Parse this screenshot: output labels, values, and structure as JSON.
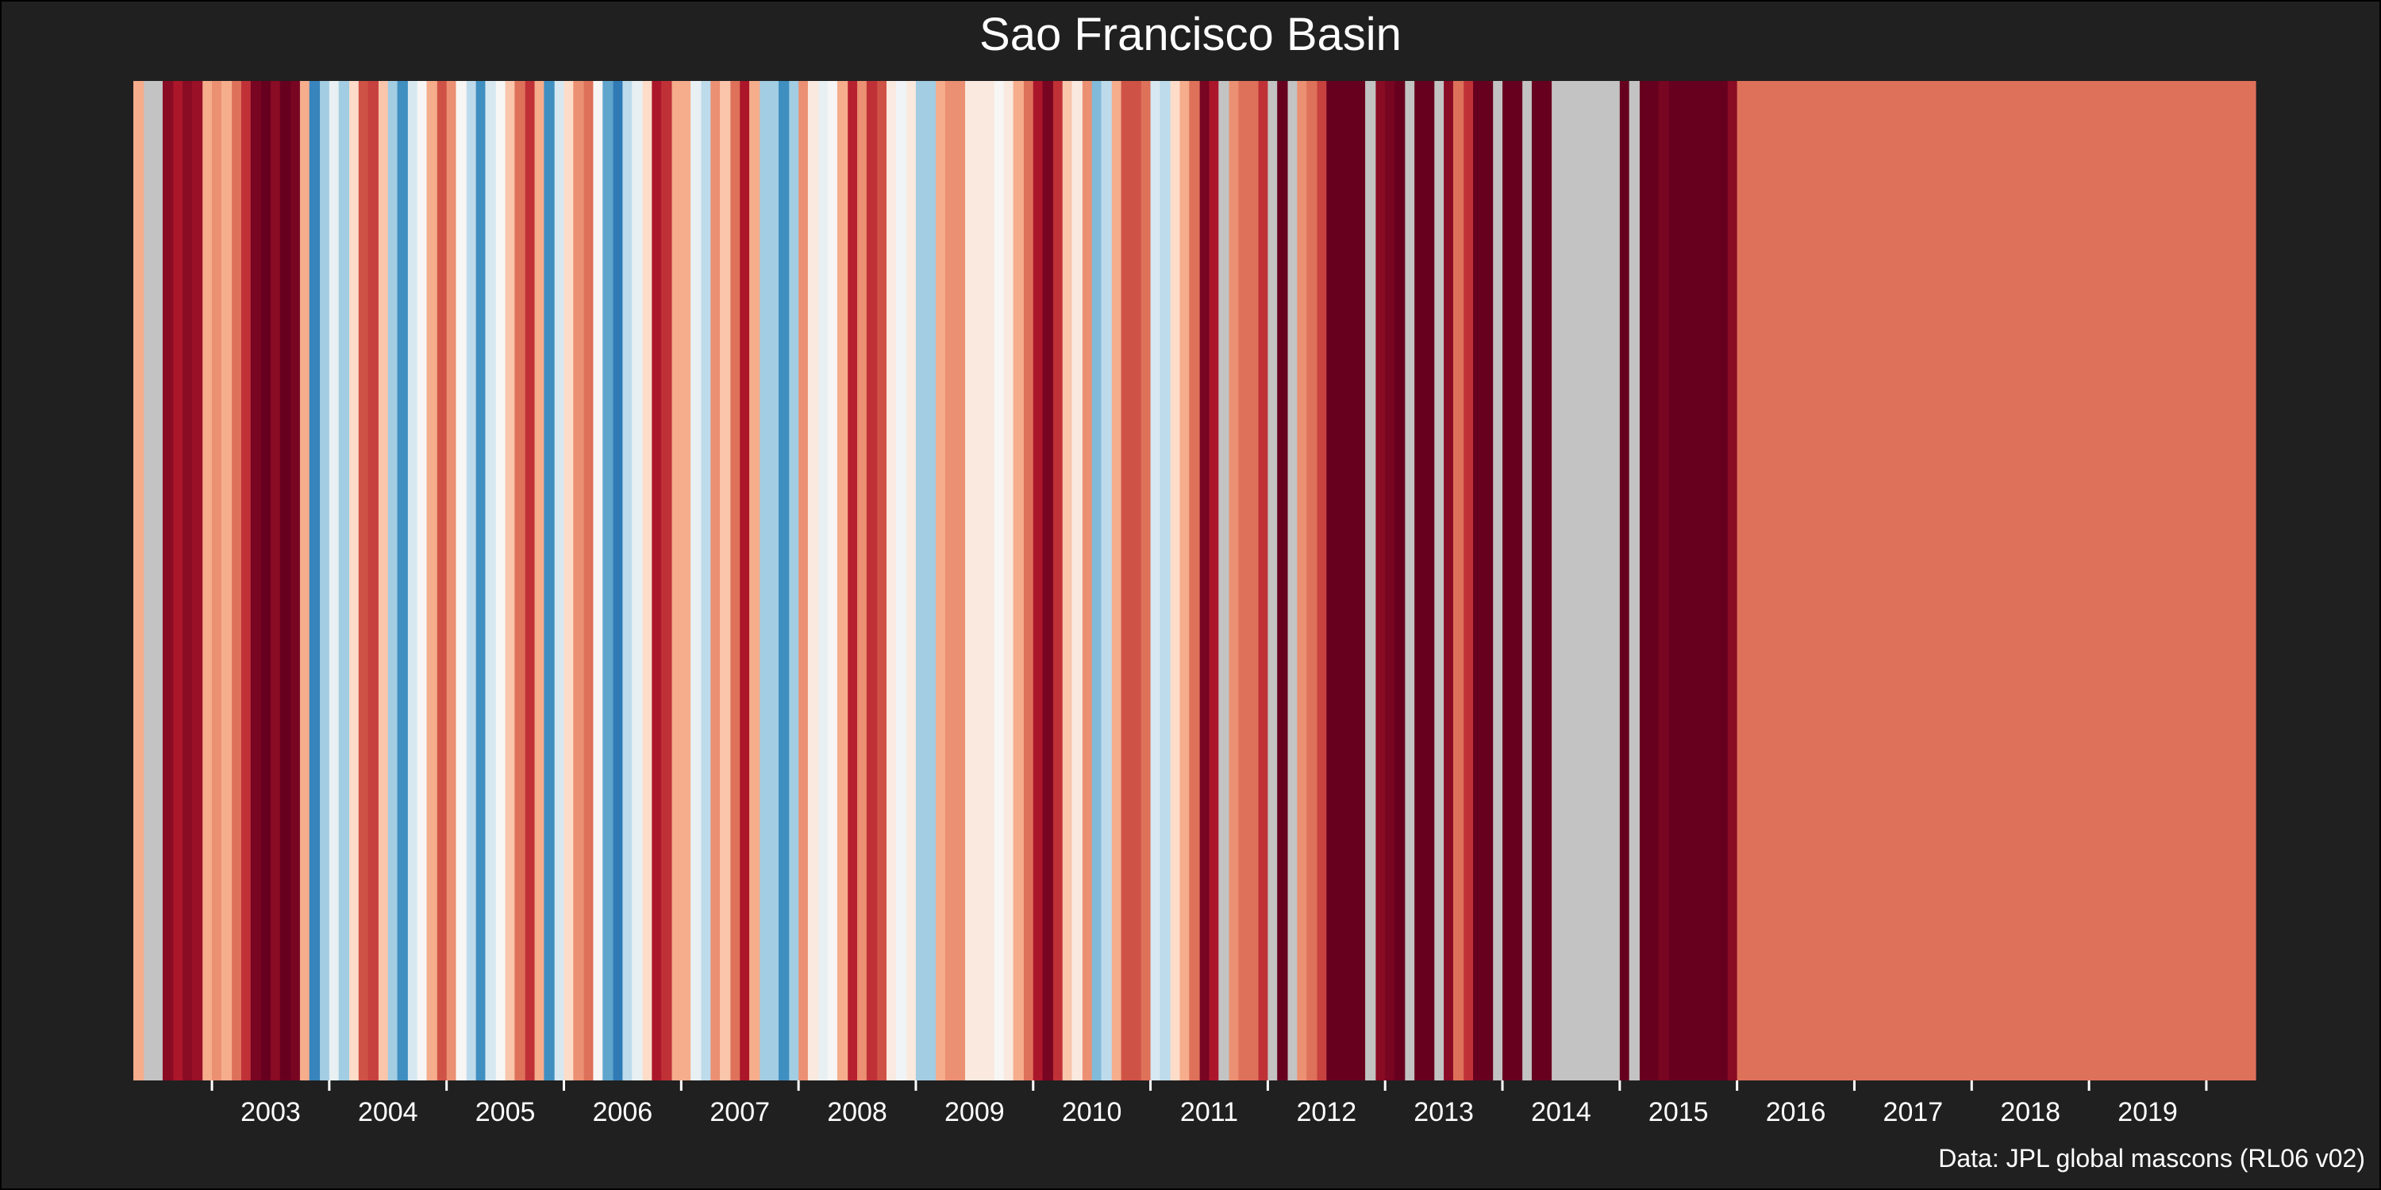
{
  "chart_data": {
    "type": "heatmap",
    "title": "Sao Francisco Basin",
    "caption": "Data: JPL global mascons (RL06 v02)",
    "xlabel": "",
    "ylabel": "",
    "x_ticks": [
      "2003",
      "2004",
      "2005",
      "2006",
      "2007",
      "2008",
      "2009",
      "2010",
      "2011",
      "2012",
      "2013",
      "2014",
      "2015",
      "2016",
      "2017",
      "2018",
      "2019"
    ],
    "x_range": [
      2002.33,
      2020.42
    ],
    "legend": "none",
    "grid": false,
    "colors": {
      "background": "#202020",
      "text": "#ffffff",
      "missing": "#c3c3c3",
      "palette": [
        "#2166ac",
        "#4393c3",
        "#92c5de",
        "#d1e5f0",
        "#f7f7f7",
        "#fddbc7",
        "#f4a582",
        "#d6604d",
        "#b2182b",
        "#67001f"
      ]
    },
    "stripes": [
      {
        "x": 2002.33,
        "v": 0.3
      },
      {
        "x": 2002.42,
        "v": null
      },
      {
        "x": 2002.5,
        "v": null
      },
      {
        "x": 2002.58,
        "v": 0.9
      },
      {
        "x": 2002.67,
        "v": 0.8
      },
      {
        "x": 2002.75,
        "v": 0.9
      },
      {
        "x": 2002.83,
        "v": 0.85
      },
      {
        "x": 2002.92,
        "v": 0.3
      },
      {
        "x": 2003.0,
        "v": 0.4
      },
      {
        "x": 2003.08,
        "v": 0.3
      },
      {
        "x": 2003.17,
        "v": 0.5
      },
      {
        "x": 2003.25,
        "v": 0.7
      },
      {
        "x": 2003.33,
        "v": 0.95
      },
      {
        "x": 2003.42,
        "v": 1.0
      },
      {
        "x": 2003.5,
        "v": 0.9
      },
      {
        "x": 2003.58,
        "v": 1.0
      },
      {
        "x": 2003.67,
        "v": 0.95
      },
      {
        "x": 2003.75,
        "v": 0.3
      },
      {
        "x": 2003.83,
        "v": -0.85
      },
      {
        "x": 2003.92,
        "v": -0.5
      },
      {
        "x": 2004.0,
        "v": -0.2
      },
      {
        "x": 2004.08,
        "v": -0.5
      },
      {
        "x": 2004.17,
        "v": 0.1
      },
      {
        "x": 2004.25,
        "v": 0.6
      },
      {
        "x": 2004.33,
        "v": 0.65
      },
      {
        "x": 2004.42,
        "v": 0.2
      },
      {
        "x": 2004.5,
        "v": -0.5
      },
      {
        "x": 2004.58,
        "v": -0.8
      },
      {
        "x": 2004.67,
        "v": -0.3
      },
      {
        "x": 2004.75,
        "v": -0.1
      },
      {
        "x": 2004.83,
        "v": 0.3
      },
      {
        "x": 2004.92,
        "v": 0.6
      },
      {
        "x": 2005.0,
        "v": 0.4
      },
      {
        "x": 2005.08,
        "v": -0.1
      },
      {
        "x": 2005.17,
        "v": -0.4
      },
      {
        "x": 2005.25,
        "v": -0.8
      },
      {
        "x": 2005.33,
        "v": -0.3
      },
      {
        "x": 2005.42,
        "v": -0.1
      },
      {
        "x": 2005.5,
        "v": 0.2
      },
      {
        "x": 2005.58,
        "v": 0.5
      },
      {
        "x": 2005.67,
        "v": 0.7
      },
      {
        "x": 2005.75,
        "v": 0.3
      },
      {
        "x": 2005.83,
        "v": -0.8
      },
      {
        "x": 2005.92,
        "v": -0.3
      },
      {
        "x": 2006.0,
        "v": 0.1
      },
      {
        "x": 2006.08,
        "v": 0.4
      },
      {
        "x": 2006.17,
        "v": 0.5
      },
      {
        "x": 2006.25,
        "v": -0.1
      },
      {
        "x": 2006.33,
        "v": -0.7
      },
      {
        "x": 2006.42,
        "v": -0.9
      },
      {
        "x": 2006.5,
        "v": -0.4
      },
      {
        "x": 2006.58,
        "v": -0.2
      },
      {
        "x": 2006.67,
        "v": 0.1
      },
      {
        "x": 2006.75,
        "v": 0.8
      },
      {
        "x": 2006.83,
        "v": 0.7
      },
      {
        "x": 2006.92,
        "v": 0.3
      },
      {
        "x": 2007.0,
        "v": 0.3
      },
      {
        "x": 2007.08,
        "v": -0.2
      },
      {
        "x": 2007.17,
        "v": -0.4
      },
      {
        "x": 2007.25,
        "v": 0.4
      },
      {
        "x": 2007.33,
        "v": 0.2
      },
      {
        "x": 2007.42,
        "v": 0.5
      },
      {
        "x": 2007.5,
        "v": 0.8
      },
      {
        "x": 2007.58,
        "v": 0.3
      },
      {
        "x": 2007.67,
        "v": -0.5
      },
      {
        "x": 2007.75,
        "v": -0.5
      },
      {
        "x": 2007.83,
        "v": -0.8
      },
      {
        "x": 2007.92,
        "v": -0.5
      },
      {
        "x": 2008.0,
        "v": 0.4
      },
      {
        "x": 2008.08,
        "v": 0.0
      },
      {
        "x": 2008.17,
        "v": -0.2
      },
      {
        "x": 2008.25,
        "v": -0.1
      },
      {
        "x": 2008.33,
        "v": 0.3
      },
      {
        "x": 2008.42,
        "v": 0.75
      },
      {
        "x": 2008.5,
        "v": 0.4
      },
      {
        "x": 2008.58,
        "v": 0.7
      },
      {
        "x": 2008.67,
        "v": 0.6
      },
      {
        "x": 2008.75,
        "v": 0.0
      },
      {
        "x": 2008.83,
        "v": -0.15
      },
      {
        "x": 2008.92,
        "v": 0.0
      },
      {
        "x": 2009.0,
        "v": -0.5
      },
      {
        "x": 2009.08,
        "v": -0.5
      },
      {
        "x": 2009.17,
        "v": 0.3
      },
      {
        "x": 2009.25,
        "v": 0.4
      },
      {
        "x": 2009.33,
        "v": 0.4
      },
      {
        "x": 2009.42,
        "v": 0.0
      },
      {
        "x": 2009.5,
        "v": 0.0
      },
      {
        "x": 2009.58,
        "v": 0.0
      },
      {
        "x": 2009.67,
        "v": -0.1
      },
      {
        "x": 2009.75,
        "v": 0.0
      },
      {
        "x": 2009.83,
        "v": 0.3
      },
      {
        "x": 2009.92,
        "v": 0.5
      },
      {
        "x": 2010.0,
        "v": 0.8
      },
      {
        "x": 2010.08,
        "v": 0.95
      },
      {
        "x": 2010.17,
        "v": 0.7
      },
      {
        "x": 2010.25,
        "v": 0.2
      },
      {
        "x": 2010.33,
        "v": 0.0
      },
      {
        "x": 2010.42,
        "v": 0.4
      },
      {
        "x": 2010.5,
        "v": -0.6
      },
      {
        "x": 2010.58,
        "v": -0.4
      },
      {
        "x": 2010.67,
        "v": 0.3
      },
      {
        "x": 2010.75,
        "v": 0.6
      },
      {
        "x": 2010.83,
        "v": 0.6
      },
      {
        "x": 2010.92,
        "v": 0.5
      },
      {
        "x": 2011.0,
        "v": -0.3
      },
      {
        "x": 2011.08,
        "v": -0.4
      },
      {
        "x": 2011.17,
        "v": 0.1
      },
      {
        "x": 2011.25,
        "v": 0.3
      },
      {
        "x": 2011.33,
        "v": 0.5
      },
      {
        "x": 2011.42,
        "v": 0.95
      },
      {
        "x": 2011.5,
        "v": 0.8
      },
      {
        "x": 2011.58,
        "v": null
      },
      {
        "x": 2011.67,
        "v": 0.4
      },
      {
        "x": 2011.75,
        "v": 0.5
      },
      {
        "x": 2011.83,
        "v": 0.5
      },
      {
        "x": 2011.92,
        "v": 0.7
      },
      {
        "x": 2012.0,
        "v": null
      },
      {
        "x": 2012.08,
        "v": 1.0
      },
      {
        "x": 2012.17,
        "v": null
      },
      {
        "x": 2012.25,
        "v": 0.4
      },
      {
        "x": 2012.33,
        "v": 0.5
      },
      {
        "x": 2012.42,
        "v": 0.65
      },
      {
        "x": 2012.5,
        "v": 1.0
      },
      {
        "x": 2012.58,
        "v": 1.0
      },
      {
        "x": 2012.67,
        "v": 1.0
      },
      {
        "x": 2012.75,
        "v": 1.0
      },
      {
        "x": 2012.83,
        "v": null
      },
      {
        "x": 2012.92,
        "v": 0.9
      },
      {
        "x": 2013.0,
        "v": 0.95
      },
      {
        "x": 2013.08,
        "v": 1.0
      },
      {
        "x": 2013.17,
        "v": null
      },
      {
        "x": 2013.25,
        "v": 1.0
      },
      {
        "x": 2013.33,
        "v": 1.0
      },
      {
        "x": 2013.42,
        "v": null
      },
      {
        "x": 2013.5,
        "v": 0.9
      },
      {
        "x": 2013.58,
        "v": 0.5
      },
      {
        "x": 2013.67,
        "v": 0.7
      },
      {
        "x": 2013.75,
        "v": 1.0
      },
      {
        "x": 2013.83,
        "v": 1.0
      },
      {
        "x": 2013.92,
        "v": null
      },
      {
        "x": 2014.0,
        "v": 1.0
      },
      {
        "x": 2014.08,
        "v": 1.0
      },
      {
        "x": 2014.17,
        "v": null
      },
      {
        "x": 2014.25,
        "v": 1.0
      },
      {
        "x": 2014.33,
        "v": 1.0
      },
      {
        "x": 2014.42,
        "v": null
      },
      {
        "x": 2014.5,
        "v": null
      },
      {
        "x": 2014.58,
        "v": null
      },
      {
        "x": 2014.67,
        "v": null
      },
      {
        "x": 2014.75,
        "v": null
      },
      {
        "x": 2014.83,
        "v": null
      },
      {
        "x": 2014.92,
        "v": null
      },
      {
        "x": 2015.0,
        "v": 1.0
      },
      {
        "x": 2015.08,
        "v": null
      },
      {
        "x": 2015.17,
        "v": 1.0
      },
      {
        "x": 2015.25,
        "v": 1.0
      },
      {
        "x": 2015.33,
        "v": 0.95
      },
      {
        "x": 2015.42,
        "v": 1.0
      },
      {
        "x": 2015.5,
        "v": 1.0
      },
      {
        "x": 2015.58,
        "v": 1.0
      },
      {
        "x": 2015.67,
        "v": 1.0
      },
      {
        "x": 2015.75,
        "v": 1.0
      },
      {
        "x": 2015.83,
        "v": 1.0
      },
      {
        "x": 2015.92,
        "v": 0.9
      },
      {
        "x": 2016.0,
        "v": 0.5
      }
    ]
  }
}
